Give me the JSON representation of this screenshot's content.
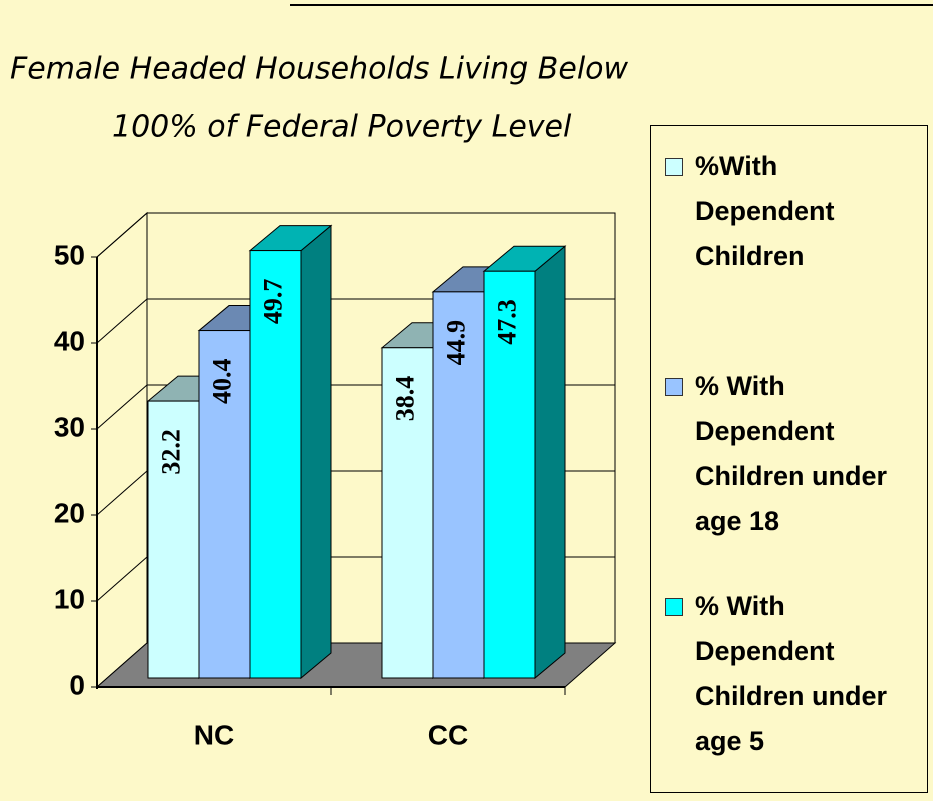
{
  "chart_data": {
    "type": "bar3d",
    "title": [
      "Female Headed Households Living Below",
      "100% of Federal Poverty Level"
    ],
    "categories": [
      "NC",
      "CC"
    ],
    "series": [
      {
        "name": "%With Dependent Children",
        "color": "#ccffff",
        "values": [
          32.2,
          38.4
        ]
      },
      {
        "name": "% With Dependent Children under age 18",
        "color": "#99c4ff",
        "values": [
          40.4,
          44.9
        ]
      },
      {
        "name": "% With Dependent Children under age 5",
        "color": "#00ffff",
        "values": [
          49.7,
          47.3
        ]
      }
    ],
    "ylim": [
      0,
      50
    ],
    "yticks": [
      0,
      10,
      20,
      30,
      40,
      50
    ],
    "grid": true,
    "legend": "right"
  }
}
